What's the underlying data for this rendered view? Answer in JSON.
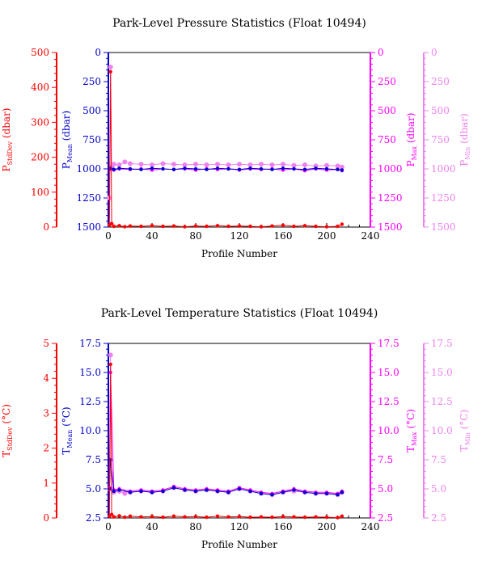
{
  "colors": {
    "stddev": "#ff0000",
    "mean": "#0000cc",
    "max": "#ff00ff",
    "min": "#ee82ee",
    "frame": "#000000"
  },
  "chart_data": [
    {
      "type": "scatter",
      "title": "Park-Level Pressure Statistics (Float 10494)",
      "xlabel": "Profile Number",
      "xlim": [
        0,
        240
      ],
      "xticks": [
        "0",
        "40",
        "80",
        "120",
        "160",
        "200",
        "240"
      ],
      "axes": {
        "stddev": {
          "label": "P",
          "sub": "StdDev",
          "unit": " (dbar)",
          "lim": [
            0,
            500
          ],
          "ticks": [
            "0",
            "100",
            "200",
            "300",
            "400",
            "500"
          ]
        },
        "mean": {
          "label": "P",
          "sub": "Mean",
          "unit": " (dbar)",
          "lim": [
            1500,
            0
          ],
          "ticks": [
            "0",
            "250",
            "500",
            "750",
            "1000",
            "1250",
            "1500"
          ]
        },
        "max": {
          "label": "P",
          "sub": "Max",
          "unit": " (dbar)",
          "lim": [
            1500,
            0
          ],
          "ticks": [
            "0",
            "250",
            "500",
            "750",
            "1000",
            "1250",
            "1500"
          ]
        },
        "min": {
          "label": "P",
          "sub": "Min",
          "unit": " (dbar)",
          "lim": [
            1500,
            0
          ],
          "ticks": [
            "0",
            "250",
            "500",
            "750",
            "1000",
            "1250",
            "1500"
          ]
        }
      },
      "series": [
        {
          "key": "min",
          "points": [
            [
              1,
              1250
            ],
            [
              2,
              125
            ],
            [
              3,
              980
            ],
            [
              5,
              960
            ],
            [
              10,
              965
            ],
            [
              15,
              940
            ],
            [
              20,
              955
            ],
            [
              30,
              960
            ],
            [
              40,
              965
            ],
            [
              50,
              955
            ],
            [
              60,
              960
            ],
            [
              70,
              965
            ],
            [
              80,
              960
            ],
            [
              90,
              965
            ],
            [
              100,
              960
            ],
            [
              110,
              965
            ],
            [
              120,
              960
            ],
            [
              130,
              965
            ],
            [
              140,
              960
            ],
            [
              150,
              965
            ],
            [
              160,
              960
            ],
            [
              170,
              970
            ],
            [
              180,
              965
            ],
            [
              190,
              975
            ],
            [
              200,
              970
            ],
            [
              210,
              975
            ],
            [
              214,
              985
            ]
          ]
        },
        {
          "key": "max",
          "points": [
            [
              1,
              1005
            ],
            [
              2,
              1000
            ],
            [
              5,
              1010
            ],
            [
              10,
              1000
            ],
            [
              20,
              1005
            ],
            [
              30,
              1000
            ],
            [
              40,
              1010
            ],
            [
              50,
              1000
            ],
            [
              60,
              1005
            ],
            [
              70,
              1000
            ],
            [
              80,
              1010
            ],
            [
              90,
              1000
            ],
            [
              100,
              1005
            ],
            [
              110,
              1000
            ],
            [
              120,
              1010
            ],
            [
              130,
              1000
            ],
            [
              140,
              1005
            ],
            [
              150,
              1000
            ],
            [
              160,
              1010
            ],
            [
              170,
              1000
            ],
            [
              180,
              1015
            ],
            [
              190,
              1000
            ],
            [
              200,
              1010
            ],
            [
              210,
              1005
            ],
            [
              214,
              1015
            ]
          ]
        },
        {
          "key": "mean",
          "points": [
            [
              1,
              1000
            ],
            [
              2,
              995
            ],
            [
              5,
              1005
            ],
            [
              10,
              995
            ],
            [
              20,
              1000
            ],
            [
              30,
              1005
            ],
            [
              40,
              995
            ],
            [
              50,
              1000
            ],
            [
              60,
              1005
            ],
            [
              70,
              995
            ],
            [
              80,
              1000
            ],
            [
              90,
              1005
            ],
            [
              100,
              995
            ],
            [
              110,
              1000
            ],
            [
              120,
              1005
            ],
            [
              130,
              995
            ],
            [
              140,
              1000
            ],
            [
              150,
              1005
            ],
            [
              160,
              995
            ],
            [
              170,
              1000
            ],
            [
              180,
              1005
            ],
            [
              190,
              995
            ],
            [
              200,
              1000
            ],
            [
              210,
              1005
            ],
            [
              214,
              1010
            ]
          ]
        },
        {
          "key": "stddev",
          "points": [
            [
              1,
              5
            ],
            [
              2,
              445
            ],
            [
              3,
              10
            ],
            [
              5,
              2
            ],
            [
              10,
              4
            ],
            [
              15,
              1
            ],
            [
              20,
              3
            ],
            [
              30,
              2
            ],
            [
              40,
              4
            ],
            [
              50,
              2
            ],
            [
              60,
              3
            ],
            [
              70,
              1
            ],
            [
              80,
              3
            ],
            [
              90,
              2
            ],
            [
              100,
              4
            ],
            [
              110,
              2
            ],
            [
              120,
              3
            ],
            [
              130,
              2
            ],
            [
              140,
              1
            ],
            [
              150,
              3
            ],
            [
              160,
              5
            ],
            [
              170,
              2
            ],
            [
              180,
              4
            ],
            [
              190,
              2
            ],
            [
              200,
              1
            ],
            [
              210,
              2
            ],
            [
              214,
              8
            ]
          ]
        }
      ]
    },
    {
      "type": "scatter",
      "title": "Park-Level Temperature Statistics (Float 10494)",
      "xlabel": "Profile Number",
      "xlim": [
        0,
        240
      ],
      "xticks": [
        "0",
        "40",
        "80",
        "120",
        "160",
        "200",
        "240"
      ],
      "axes": {
        "stddev": {
          "label": "T",
          "sub": "StdDev",
          "unit": " (°C)",
          "lim": [
            0,
            5
          ],
          "ticks": [
            "0",
            "1",
            "2",
            "3",
            "4",
            "5"
          ]
        },
        "mean": {
          "label": "T",
          "sub": "Mean",
          "unit": " (°C)",
          "lim": [
            2.5,
            17.5
          ],
          "ticks": [
            "2.5",
            "5.0",
            "7.5",
            "10.0",
            "12.5",
            "15.0",
            "17.5"
          ]
        },
        "max": {
          "label": "T",
          "sub": "Max",
          "unit": " (°C)",
          "lim": [
            2.5,
            17.5
          ],
          "ticks": [
            "2.5",
            "5.0",
            "7.5",
            "10.0",
            "12.5",
            "15.0",
            "17.5"
          ]
        },
        "min": {
          "label": "T",
          "sub": "Min",
          "unit": " (°C)",
          "lim": [
            2.5,
            17.5
          ],
          "ticks": [
            "2.5",
            "5.0",
            "7.5",
            "10.0",
            "12.5",
            "15.0",
            "17.5"
          ]
        }
      },
      "series": [
        {
          "key": "min",
          "points": [
            [
              1,
              5.0
            ],
            [
              2,
              16.5
            ],
            [
              3,
              5.0
            ],
            [
              5,
              4.7
            ],
            [
              10,
              4.8
            ],
            [
              15,
              4.6
            ],
            [
              20,
              4.7
            ],
            [
              30,
              4.8
            ],
            [
              40,
              4.7
            ],
            [
              50,
              4.8
            ],
            [
              60,
              5.1
            ],
            [
              70,
              4.9
            ],
            [
              80,
              4.8
            ],
            [
              90,
              4.9
            ],
            [
              100,
              4.8
            ],
            [
              110,
              4.7
            ],
            [
              120,
              5.0
            ],
            [
              130,
              4.8
            ],
            [
              140,
              4.6
            ],
            [
              150,
              4.5
            ],
            [
              160,
              4.7
            ],
            [
              170,
              4.8
            ],
            [
              180,
              4.7
            ],
            [
              190,
              4.6
            ],
            [
              200,
              4.6
            ],
            [
              210,
              4.5
            ],
            [
              214,
              4.7
            ]
          ]
        },
        {
          "key": "max",
          "points": [
            [
              1,
              5.1
            ],
            [
              2,
              15.0
            ],
            [
              5,
              4.9
            ],
            [
              10,
              5.0
            ],
            [
              20,
              4.8
            ],
            [
              30,
              4.9
            ],
            [
              40,
              4.8
            ],
            [
              50,
              4.9
            ],
            [
              60,
              5.2
            ],
            [
              70,
              5.0
            ],
            [
              80,
              4.9
            ],
            [
              90,
              5.0
            ],
            [
              100,
              4.9
            ],
            [
              110,
              4.8
            ],
            [
              120,
              5.1
            ],
            [
              130,
              4.9
            ],
            [
              140,
              4.7
            ],
            [
              150,
              4.6
            ],
            [
              160,
              4.8
            ],
            [
              170,
              5.0
            ],
            [
              180,
              4.8
            ],
            [
              190,
              4.7
            ],
            [
              200,
              4.7
            ],
            [
              210,
              4.6
            ],
            [
              214,
              4.8
            ]
          ]
        },
        {
          "key": "mean",
          "points": [
            [
              1,
              5.0
            ],
            [
              2,
              7.5
            ],
            [
              5,
              4.8
            ],
            [
              10,
              4.9
            ],
            [
              20,
              4.7
            ],
            [
              30,
              4.8
            ],
            [
              40,
              4.7
            ],
            [
              50,
              4.8
            ],
            [
              60,
              5.1
            ],
            [
              70,
              4.9
            ],
            [
              80,
              4.8
            ],
            [
              90,
              4.9
            ],
            [
              100,
              4.8
            ],
            [
              110,
              4.7
            ],
            [
              120,
              5.0
            ],
            [
              130,
              4.8
            ],
            [
              140,
              4.6
            ],
            [
              150,
              4.5
            ],
            [
              160,
              4.7
            ],
            [
              170,
              4.9
            ],
            [
              180,
              4.7
            ],
            [
              190,
              4.6
            ],
            [
              200,
              4.6
            ],
            [
              210,
              4.5
            ],
            [
              214,
              4.7
            ]
          ]
        },
        {
          "key": "stddev",
          "points": [
            [
              1,
              0.05
            ],
            [
              2,
              4.4
            ],
            [
              3,
              0.1
            ],
            [
              5,
              0.03
            ],
            [
              10,
              0.06
            ],
            [
              15,
              0.02
            ],
            [
              20,
              0.05
            ],
            [
              30,
              0.03
            ],
            [
              40,
              0.04
            ],
            [
              50,
              0.02
            ],
            [
              60,
              0.05
            ],
            [
              70,
              0.03
            ],
            [
              80,
              0.04
            ],
            [
              90,
              0.02
            ],
            [
              100,
              0.05
            ],
            [
              110,
              0.03
            ],
            [
              120,
              0.04
            ],
            [
              130,
              0.02
            ],
            [
              140,
              0.03
            ],
            [
              150,
              0.02
            ],
            [
              160,
              0.04
            ],
            [
              170,
              0.03
            ],
            [
              180,
              0.02
            ],
            [
              190,
              0.03
            ],
            [
              200,
              0.02
            ],
            [
              210,
              0.01
            ],
            [
              214,
              0.05
            ]
          ]
        }
      ]
    }
  ]
}
